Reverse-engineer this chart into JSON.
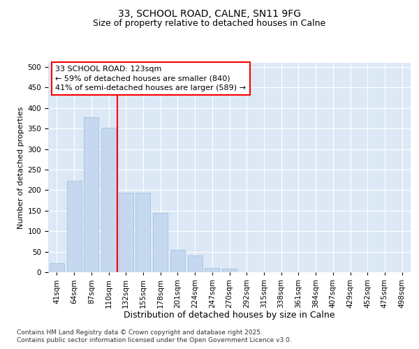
{
  "title1": "33, SCHOOL ROAD, CALNE, SN11 9FG",
  "title2": "Size of property relative to detached houses in Calne",
  "xlabel": "Distribution of detached houses by size in Calne",
  "ylabel": "Number of detached properties",
  "categories": [
    "41sqm",
    "64sqm",
    "87sqm",
    "110sqm",
    "132sqm",
    "155sqm",
    "178sqm",
    "201sqm",
    "224sqm",
    "247sqm",
    "270sqm",
    "292sqm",
    "315sqm",
    "338sqm",
    "361sqm",
    "384sqm",
    "407sqm",
    "429sqm",
    "452sqm",
    "475sqm",
    "498sqm"
  ],
  "values": [
    22,
    222,
    378,
    352,
    193,
    193,
    145,
    55,
    40,
    11,
    8,
    0,
    0,
    0,
    0,
    0,
    0,
    0,
    0,
    0,
    0
  ],
  "bar_color": "#c5d8f0",
  "bar_edge_color": "#9bbdd8",
  "vline_x": 3.5,
  "vline_color": "red",
  "annotation_line1": "33 SCHOOL ROAD: 123sqm",
  "annotation_line2": "← 59% of detached houses are smaller (840)",
  "annotation_line3": "41% of semi-detached houses are larger (589) →",
  "annotation_box_color": "white",
  "annotation_box_edge": "red",
  "ylim": [
    0,
    510
  ],
  "yticks": [
    0,
    50,
    100,
    150,
    200,
    250,
    300,
    350,
    400,
    450,
    500
  ],
  "plot_bg": "#dce8f5",
  "footer": "Contains HM Land Registry data © Crown copyright and database right 2025.\nContains public sector information licensed under the Open Government Licence v3.0.",
  "title1_fontsize": 10,
  "title2_fontsize": 9,
  "xlabel_fontsize": 9,
  "ylabel_fontsize": 8,
  "tick_fontsize": 7.5,
  "annotation_fontsize": 8,
  "footer_fontsize": 6.5
}
